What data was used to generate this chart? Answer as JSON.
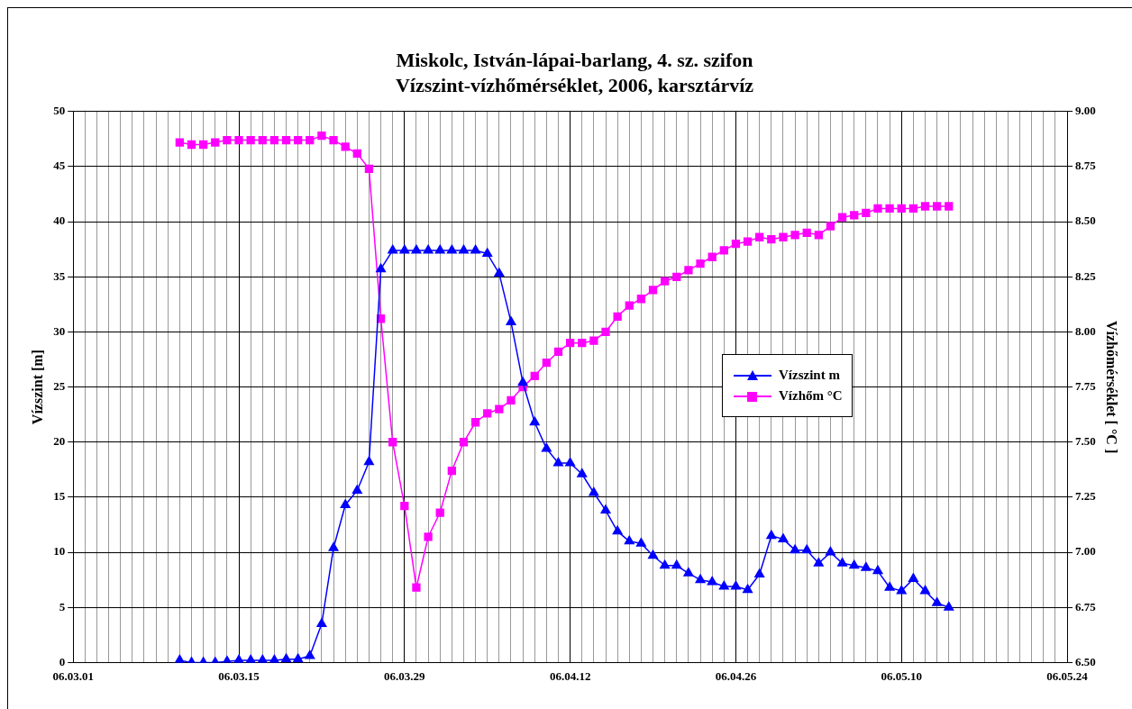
{
  "chart_data": {
    "type": "line",
    "title": "Miskolc, István-lápai-barlang, 4. sz. szifon",
    "subtitle": "Vízszint-vízhőmérséklet, 2006, karsztárvíz",
    "ylabel": "Vízszint [m]",
    "y2label": "Vízhőmérséklet [ °C ]",
    "x": [
      "2006-03-10",
      "2006-03-11",
      "2006-03-12",
      "2006-03-13",
      "2006-03-14",
      "2006-03-15",
      "2006-03-16",
      "2006-03-17",
      "2006-03-18",
      "2006-03-19",
      "2006-03-20",
      "2006-03-21",
      "2006-03-22",
      "2006-03-23",
      "2006-03-24",
      "2006-03-25",
      "2006-03-26",
      "2006-03-27",
      "2006-03-28",
      "2006-03-29",
      "2006-03-30",
      "2006-03-31",
      "2006-04-01",
      "2006-04-02",
      "2006-04-03",
      "2006-04-04",
      "2006-04-05",
      "2006-04-06",
      "2006-04-07",
      "2006-04-08",
      "2006-04-09",
      "2006-04-10",
      "2006-04-11",
      "2006-04-12",
      "2006-04-13",
      "2006-04-14",
      "2006-04-15",
      "2006-04-16",
      "2006-04-17",
      "2006-04-18",
      "2006-04-19",
      "2006-04-20",
      "2006-04-21",
      "2006-04-22",
      "2006-04-23",
      "2006-04-24",
      "2006-04-25",
      "2006-04-26",
      "2006-04-27",
      "2006-04-28",
      "2006-04-29",
      "2006-04-30",
      "2006-05-01",
      "2006-05-02",
      "2006-05-03",
      "2006-05-04",
      "2006-05-05",
      "2006-05-06",
      "2006-05-07",
      "2006-05-08",
      "2006-05-09",
      "2006-05-10",
      "2006-05-11",
      "2006-05-12",
      "2006-05-13",
      "2006-05-14"
    ],
    "series": [
      {
        "name": "Vízszint m",
        "color": "#0000ff",
        "marker": "triangle",
        "values": [
          0.2,
          0.0,
          0.0,
          0.0,
          0.1,
          0.2,
          0.2,
          0.2,
          0.2,
          0.3,
          0.3,
          0.6,
          3.5,
          10.4,
          14.3,
          15.6,
          18.2,
          35.7,
          37.4,
          37.4,
          37.4,
          37.4,
          37.4,
          37.4,
          37.4,
          37.4,
          37.1,
          35.3,
          30.9,
          25.4,
          21.8,
          19.4,
          18.1,
          18.1,
          17.1,
          15.4,
          13.8,
          11.9,
          11.0,
          10.8,
          9.7,
          8.8,
          8.8,
          8.1,
          7.5,
          7.3,
          6.9,
          6.9,
          6.6,
          8.0,
          11.5,
          11.2,
          10.2,
          10.2,
          9.0,
          10.0,
          9.0,
          8.8,
          8.6,
          8.3,
          6.8,
          6.5,
          7.6,
          6.5,
          5.4,
          5.0
        ]
      },
      {
        "name": "Vízhőm °C",
        "color": "#ff00ff",
        "marker": "square",
        "axis": "y2",
        "values": [
          8.86,
          8.85,
          8.85,
          8.86,
          8.87,
          8.87,
          8.87,
          8.87,
          8.87,
          8.87,
          8.87,
          8.87,
          8.89,
          8.87,
          8.84,
          8.81,
          8.74,
          8.06,
          7.5,
          7.21,
          6.84,
          7.07,
          7.18,
          7.37,
          7.5,
          7.59,
          7.63,
          7.65,
          7.69,
          7.75,
          7.8,
          7.86,
          7.91,
          7.95,
          7.95,
          7.96,
          8.0,
          8.07,
          8.12,
          8.15,
          8.19,
          8.23,
          8.25,
          8.28,
          8.31,
          8.34,
          8.37,
          8.4,
          8.41,
          8.43,
          8.42,
          8.43,
          8.44,
          8.45,
          8.44,
          8.48,
          8.52,
          8.53,
          8.54,
          8.56,
          8.56,
          8.56,
          8.56,
          8.57,
          8.57,
          8.57
        ]
      }
    ],
    "xlim": [
      "2006-03-01",
      "2006-05-24"
    ],
    "xticks": [
      {
        "value": "2006-03-01",
        "label": "06.03.01"
      },
      {
        "value": "2006-03-02",
        "label": null
      },
      {
        "value": "2006-03-03",
        "label": null
      },
      {
        "value": "2006-03-04",
        "label": null
      },
      {
        "value": "2006-03-05",
        "label": null
      },
      {
        "value": "2006-03-06",
        "label": null
      },
      {
        "value": "2006-03-07",
        "label": null
      },
      {
        "value": "2006-03-08",
        "label": null
      },
      {
        "value": "2006-03-09",
        "label": null
      },
      {
        "value": "2006-03-10",
        "label": null
      },
      {
        "value": "2006-03-11",
        "label": null
      },
      {
        "value": "2006-03-12",
        "label": null
      },
      {
        "value": "2006-03-13",
        "label": null
      },
      {
        "value": "2006-03-14",
        "label": null
      },
      {
        "value": "2006-03-15",
        "label": "06.03.15"
      },
      {
        "value": "2006-03-16",
        "label": null
      },
      {
        "value": "2006-03-17",
        "label": null
      },
      {
        "value": "2006-03-18",
        "label": null
      },
      {
        "value": "2006-03-19",
        "label": null
      },
      {
        "value": "2006-03-20",
        "label": null
      },
      {
        "value": "2006-03-21",
        "label": null
      },
      {
        "value": "2006-03-22",
        "label": null
      },
      {
        "value": "2006-03-23",
        "label": null
      },
      {
        "value": "2006-03-24",
        "label": null
      },
      {
        "value": "2006-03-25",
        "label": null
      },
      {
        "value": "2006-03-26",
        "label": null
      },
      {
        "value": "2006-03-27",
        "label": null
      },
      {
        "value": "2006-03-28",
        "label": null
      },
      {
        "value": "2006-03-29",
        "label": "06.03.29"
      },
      {
        "value": "2006-03-30",
        "label": null
      },
      {
        "value": "2006-03-31",
        "label": null
      },
      {
        "value": "2006-04-01",
        "label": null
      },
      {
        "value": "2006-04-02",
        "label": null
      },
      {
        "value": "2006-04-03",
        "label": null
      },
      {
        "value": "2006-04-04",
        "label": null
      },
      {
        "value": "2006-04-05",
        "label": null
      },
      {
        "value": "2006-04-06",
        "label": null
      },
      {
        "value": "2006-04-07",
        "label": null
      },
      {
        "value": "2006-04-08",
        "label": null
      },
      {
        "value": "2006-04-09",
        "label": null
      },
      {
        "value": "2006-04-10",
        "label": null
      },
      {
        "value": "2006-04-11",
        "label": null
      },
      {
        "value": "2006-04-12",
        "label": "06.04.12"
      },
      {
        "value": "2006-04-13",
        "label": null
      },
      {
        "value": "2006-04-14",
        "label": null
      },
      {
        "value": "2006-04-15",
        "label": null
      },
      {
        "value": "2006-04-16",
        "label": null
      },
      {
        "value": "2006-04-17",
        "label": null
      },
      {
        "value": "2006-04-18",
        "label": null
      },
      {
        "value": "2006-04-19",
        "label": null
      },
      {
        "value": "2006-04-20",
        "label": null
      },
      {
        "value": "2006-04-21",
        "label": null
      },
      {
        "value": "2006-04-22",
        "label": null
      },
      {
        "value": "2006-04-23",
        "label": null
      },
      {
        "value": "2006-04-24",
        "label": null
      },
      {
        "value": "2006-04-25",
        "label": null
      },
      {
        "value": "2006-04-26",
        "label": "06.04.26"
      },
      {
        "value": "2006-04-27",
        "label": null
      },
      {
        "value": "2006-04-28",
        "label": null
      },
      {
        "value": "2006-04-29",
        "label": null
      },
      {
        "value": "2006-04-30",
        "label": null
      },
      {
        "value": "2006-05-01",
        "label": null
      },
      {
        "value": "2006-05-02",
        "label": null
      },
      {
        "value": "2006-05-03",
        "label": null
      },
      {
        "value": "2006-05-04",
        "label": null
      },
      {
        "value": "2006-05-05",
        "label": null
      },
      {
        "value": "2006-05-06",
        "label": null
      },
      {
        "value": "2006-05-07",
        "label": null
      },
      {
        "value": "2006-05-08",
        "label": null
      },
      {
        "value": "2006-05-09",
        "label": null
      },
      {
        "value": "2006-05-10",
        "label": "06.05.10"
      },
      {
        "value": "2006-05-11",
        "label": null
      },
      {
        "value": "2006-05-12",
        "label": null
      },
      {
        "value": "2006-05-13",
        "label": null
      },
      {
        "value": "2006-05-14",
        "label": null
      },
      {
        "value": "2006-05-15",
        "label": null
      },
      {
        "value": "2006-05-16",
        "label": null
      },
      {
        "value": "2006-05-17",
        "label": null
      },
      {
        "value": "2006-05-18",
        "label": null
      },
      {
        "value": "2006-05-19",
        "label": null
      },
      {
        "value": "2006-05-20",
        "label": null
      },
      {
        "value": "2006-05-21",
        "label": null
      },
      {
        "value": "2006-05-22",
        "label": null
      },
      {
        "value": "2006-05-23",
        "label": null
      },
      {
        "value": "2006-05-24",
        "label": "06.05.24"
      }
    ],
    "ylim": [
      0,
      50
    ],
    "yticks": [
      0,
      5,
      10,
      15,
      20,
      25,
      30,
      35,
      40,
      45,
      50
    ],
    "y2lim": [
      6.5,
      9.0
    ],
    "y2ticks": [
      {
        "value": 6.5,
        "label": "6.50"
      },
      {
        "value": 6.75,
        "label": "6.75"
      },
      {
        "value": 7.0,
        "label": "7.00"
      },
      {
        "value": 7.25,
        "label": "7.25"
      },
      {
        "value": 7.5,
        "label": "7.50"
      },
      {
        "value": 7.75,
        "label": "7.75"
      },
      {
        "value": 8.0,
        "label": "8.00"
      },
      {
        "value": 8.25,
        "label": "8.25"
      },
      {
        "value": 8.5,
        "label": "8.50"
      },
      {
        "value": 8.75,
        "label": "8.75"
      },
      {
        "value": 9.0,
        "label": "9.00"
      }
    ],
    "grid": true,
    "legend": "right",
    "line_style": "solid"
  }
}
